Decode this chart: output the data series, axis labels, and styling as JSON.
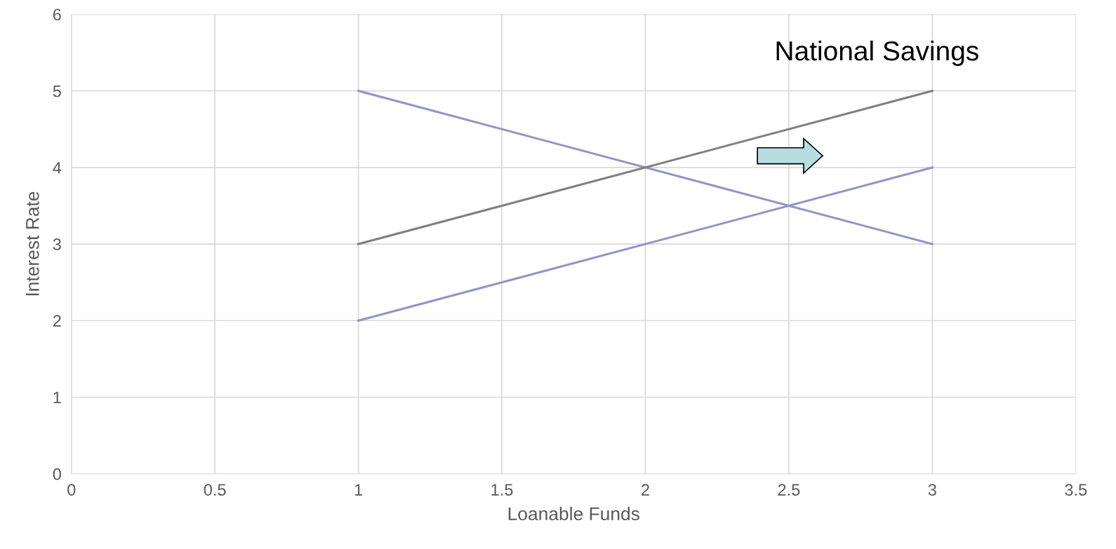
{
  "chart_data": {
    "type": "line",
    "xlabel": "Loanable Funds",
    "ylabel": "Interest Rate",
    "annotations": [
      "National Savings"
    ],
    "x": [
      1,
      3
    ],
    "series": [
      {
        "color": "#9494c8",
        "values": [
          5,
          3
        ]
      },
      {
        "color": "#808080",
        "values": [
          3,
          5
        ]
      },
      {
        "color": "#9494c8",
        "values": [
          2,
          4
        ]
      }
    ],
    "xlim": [
      0,
      3.5
    ],
    "xticks": [
      0,
      0.5,
      1,
      1.5,
      2,
      2.5,
      3,
      3.5
    ],
    "ylim": [
      0,
      6
    ],
    "yticks": [
      0,
      1,
      2,
      3,
      4,
      5,
      6
    ],
    "grid": true,
    "legend": false,
    "marker": "none",
    "line_style": "solid"
  }
}
